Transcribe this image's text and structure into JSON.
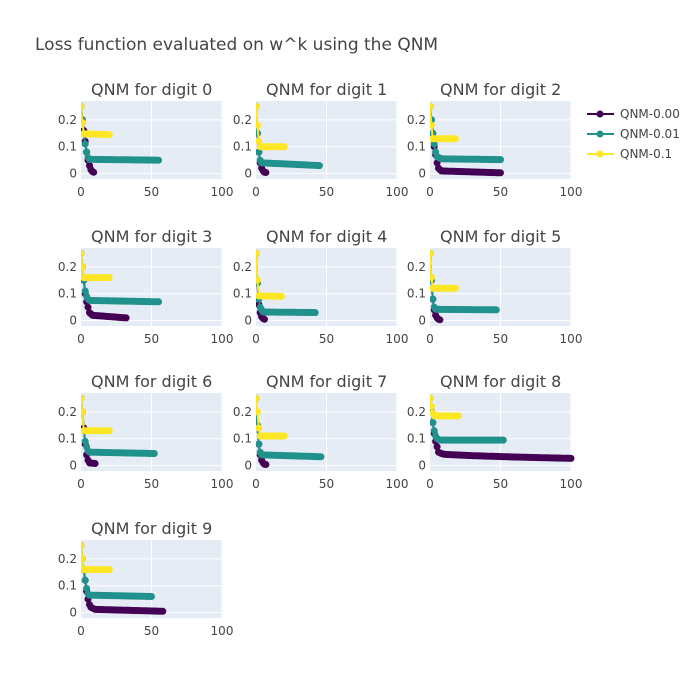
{
  "title": "Loss function evaluated on w^k using the QNM",
  "colors": {
    "plot_bg": "#e5ecf6",
    "grid": "#ffffff",
    "text": "#444444"
  },
  "legend": [
    {
      "name": "QNM-0.00",
      "color": "#440154"
    },
    {
      "name": "QNM-0.01",
      "color": "#21918c"
    },
    {
      "name": "QNM-0.1",
      "color": "#fde725"
    }
  ],
  "chart_data": [
    {
      "type": "line",
      "title": "QNM for digit 0",
      "xlim": [
        0,
        100
      ],
      "ylim": [
        -0.02,
        0.27
      ],
      "xticks": [
        0,
        50,
        100
      ],
      "yticks": [
        0,
        0.1,
        0.2
      ],
      "ytick_labels": [
        "0",
        "0.1",
        "0.2"
      ],
      "series": [
        {
          "name": "QNM-0.00",
          "color": "#440154",
          "x": [
            0,
            1,
            2,
            3,
            4,
            5,
            6,
            7,
            8,
            9
          ],
          "y": [
            0.25,
            0.2,
            0.16,
            0.12,
            0.08,
            0.05,
            0.03,
            0.015,
            0.008,
            0.005
          ]
        },
        {
          "name": "QNM-0.01",
          "color": "#21918c",
          "x": [
            0,
            1,
            2,
            3,
            4,
            5,
            6,
            55
          ],
          "y": [
            0.25,
            0.2,
            0.15,
            0.11,
            0.08,
            0.06,
            0.053,
            0.05
          ]
        },
        {
          "name": "QNM-0.1",
          "color": "#fde725",
          "x": [
            0,
            1,
            2,
            20
          ],
          "y": [
            0.25,
            0.19,
            0.148,
            0.145
          ]
        }
      ]
    },
    {
      "type": "line",
      "title": "QNM for digit 1",
      "xlim": [
        0,
        100
      ],
      "ylim": [
        -0.02,
        0.27
      ],
      "xticks": [
        0,
        50,
        100
      ],
      "yticks": [
        0,
        0.1,
        0.2
      ],
      "ytick_labels": [
        "0",
        "0.1",
        "0.2"
      ],
      "series": [
        {
          "name": "QNM-0.00",
          "color": "#440154",
          "x": [
            0,
            1,
            2,
            3,
            4,
            5,
            6,
            7
          ],
          "y": [
            0.25,
            0.15,
            0.08,
            0.04,
            0.02,
            0.01,
            0.005,
            0.004
          ]
        },
        {
          "name": "QNM-0.01",
          "color": "#21918c",
          "x": [
            0,
            1,
            2,
            3,
            4,
            45
          ],
          "y": [
            0.25,
            0.15,
            0.08,
            0.05,
            0.04,
            0.03
          ]
        },
        {
          "name": "QNM-0.1",
          "color": "#fde725",
          "x": [
            0,
            1,
            2,
            3,
            20
          ],
          "y": [
            0.25,
            0.18,
            0.12,
            0.1,
            0.1
          ]
        }
      ]
    },
    {
      "type": "line",
      "title": "QNM for digit 2",
      "xlim": [
        0,
        100
      ],
      "ylim": [
        -0.02,
        0.27
      ],
      "xticks": [
        0,
        50,
        100
      ],
      "yticks": [
        0,
        0.1,
        0.2
      ],
      "ytick_labels": [
        "0",
        "0.1",
        "0.2"
      ],
      "series": [
        {
          "name": "QNM-0.00",
          "color": "#440154",
          "x": [
            0,
            1,
            2,
            3,
            4,
            5,
            6,
            8,
            50
          ],
          "y": [
            0.25,
            0.2,
            0.15,
            0.1,
            0.07,
            0.04,
            0.02,
            0.01,
            0.003
          ]
        },
        {
          "name": "QNM-0.01",
          "color": "#21918c",
          "x": [
            0,
            1,
            2,
            3,
            4,
            5,
            8,
            50
          ],
          "y": [
            0.25,
            0.2,
            0.15,
            0.11,
            0.08,
            0.063,
            0.055,
            0.052
          ]
        },
        {
          "name": "QNM-0.1",
          "color": "#fde725",
          "x": [
            0,
            1,
            2,
            18
          ],
          "y": [
            0.25,
            0.18,
            0.13,
            0.13
          ]
        }
      ]
    },
    {
      "type": "line",
      "title": "QNM for digit 3",
      "xlim": [
        0,
        100
      ],
      "ylim": [
        -0.02,
        0.27
      ],
      "xticks": [
        0,
        50,
        100
      ],
      "yticks": [
        0,
        0.1,
        0.2
      ],
      "ytick_labels": [
        "0",
        "0.1",
        "0.2"
      ],
      "series": [
        {
          "name": "QNM-0.00",
          "color": "#440154",
          "x": [
            0,
            1,
            2,
            3,
            4,
            5,
            6,
            8,
            32
          ],
          "y": [
            0.25,
            0.2,
            0.15,
            0.1,
            0.07,
            0.05,
            0.03,
            0.02,
            0.01
          ]
        },
        {
          "name": "QNM-0.01",
          "color": "#21918c",
          "x": [
            0,
            1,
            2,
            3,
            4,
            5,
            6,
            55
          ],
          "y": [
            0.25,
            0.2,
            0.15,
            0.11,
            0.09,
            0.08,
            0.075,
            0.07
          ]
        },
        {
          "name": "QNM-0.1",
          "color": "#fde725",
          "x": [
            0,
            1,
            2,
            20
          ],
          "y": [
            0.25,
            0.2,
            0.16,
            0.16
          ]
        }
      ]
    },
    {
      "type": "line",
      "title": "QNM for digit 4",
      "xlim": [
        0,
        100
      ],
      "ylim": [
        -0.02,
        0.27
      ],
      "xticks": [
        0,
        50,
        100
      ],
      "yticks": [
        0,
        0.1,
        0.2
      ],
      "ytick_labels": [
        "0",
        "0.1",
        "0.2"
      ],
      "series": [
        {
          "name": "QNM-0.00",
          "color": "#440154",
          "x": [
            0,
            1,
            2,
            3,
            4,
            5,
            6
          ],
          "y": [
            0.25,
            0.14,
            0.06,
            0.03,
            0.015,
            0.008,
            0.005
          ]
        },
        {
          "name": "QNM-0.01",
          "color": "#21918c",
          "x": [
            0,
            1,
            2,
            3,
            4,
            5,
            42
          ],
          "y": [
            0.25,
            0.14,
            0.08,
            0.05,
            0.04,
            0.032,
            0.03
          ]
        },
        {
          "name": "QNM-0.1",
          "color": "#fde725",
          "x": [
            0,
            1,
            2,
            18
          ],
          "y": [
            0.25,
            0.15,
            0.092,
            0.09
          ]
        }
      ]
    },
    {
      "type": "line",
      "title": "QNM for digit 5",
      "xlim": [
        0,
        100
      ],
      "ylim": [
        -0.02,
        0.27
      ],
      "xticks": [
        0,
        50,
        100
      ],
      "yticks": [
        0,
        0.1,
        0.2
      ],
      "ytick_labels": [
        "0",
        "0.1",
        "0.2"
      ],
      "series": [
        {
          "name": "QNM-0.00",
          "color": "#440154",
          "x": [
            0,
            1,
            2,
            3,
            4,
            5,
            6,
            7
          ],
          "y": [
            0.25,
            0.15,
            0.08,
            0.04,
            0.02,
            0.01,
            0.005,
            0.003
          ]
        },
        {
          "name": "QNM-0.01",
          "color": "#21918c",
          "x": [
            0,
            1,
            2,
            3,
            4,
            47
          ],
          "y": [
            0.25,
            0.15,
            0.08,
            0.05,
            0.042,
            0.04
          ]
        },
        {
          "name": "QNM-0.1",
          "color": "#fde725",
          "x": [
            0,
            1,
            2,
            18
          ],
          "y": [
            0.25,
            0.16,
            0.12,
            0.12
          ]
        }
      ]
    },
    {
      "type": "line",
      "title": "QNM for digit 6",
      "xlim": [
        0,
        100
      ],
      "ylim": [
        -0.02,
        0.27
      ],
      "xticks": [
        0,
        50,
        100
      ],
      "yticks": [
        0,
        0.1,
        0.2
      ],
      "ytick_labels": [
        "0",
        "0.1",
        "0.2"
      ],
      "series": [
        {
          "name": "QNM-0.00",
          "color": "#440154",
          "x": [
            0,
            1,
            2,
            3,
            4,
            5,
            6,
            10
          ],
          "y": [
            0.25,
            0.2,
            0.14,
            0.08,
            0.04,
            0.02,
            0.01,
            0.008
          ]
        },
        {
          "name": "QNM-0.01",
          "color": "#21918c",
          "x": [
            0,
            1,
            2,
            3,
            4,
            5,
            6,
            52
          ],
          "y": [
            0.25,
            0.2,
            0.13,
            0.09,
            0.07,
            0.055,
            0.05,
            0.045
          ]
        },
        {
          "name": "QNM-0.1",
          "color": "#fde725",
          "x": [
            0,
            1,
            2,
            20
          ],
          "y": [
            0.25,
            0.2,
            0.13,
            0.13
          ]
        }
      ]
    },
    {
      "type": "line",
      "title": "QNM for digit 7",
      "xlim": [
        0,
        100
      ],
      "ylim": [
        -0.02,
        0.27
      ],
      "xticks": [
        0,
        50,
        100
      ],
      "yticks": [
        0,
        0.1,
        0.2
      ],
      "ytick_labels": [
        "0",
        "0.1",
        "0.2"
      ],
      "series": [
        {
          "name": "QNM-0.00",
          "color": "#440154",
          "x": [
            0,
            1,
            2,
            3,
            4,
            5,
            6,
            7
          ],
          "y": [
            0.25,
            0.15,
            0.08,
            0.04,
            0.02,
            0.01,
            0.005,
            0.004
          ]
        },
        {
          "name": "QNM-0.01",
          "color": "#21918c",
          "x": [
            0,
            1,
            2,
            3,
            4,
            46
          ],
          "y": [
            0.25,
            0.15,
            0.08,
            0.05,
            0.04,
            0.033
          ]
        },
        {
          "name": "QNM-0.1",
          "color": "#fde725",
          "x": [
            0,
            1,
            2,
            3,
            20
          ],
          "y": [
            0.25,
            0.2,
            0.14,
            0.11,
            0.11
          ]
        }
      ]
    },
    {
      "type": "line",
      "title": "QNM for digit 8",
      "xlim": [
        0,
        100
      ],
      "ylim": [
        -0.02,
        0.27
      ],
      "xticks": [
        0,
        50,
        100
      ],
      "yticks": [
        0,
        0.1,
        0.2
      ],
      "ytick_labels": [
        "0",
        "0.1",
        "0.2"
      ],
      "series": [
        {
          "name": "QNM-0.00",
          "color": "#440154",
          "x": [
            0,
            1,
            2,
            3,
            4,
            5,
            6,
            8,
            10,
            30,
            60,
            100
          ],
          "y": [
            0.25,
            0.2,
            0.16,
            0.12,
            0.09,
            0.07,
            0.05,
            0.045,
            0.042,
            0.037,
            0.032,
            0.027
          ]
        },
        {
          "name": "QNM-0.01",
          "color": "#21918c",
          "x": [
            0,
            1,
            2,
            3,
            4,
            5,
            7,
            52
          ],
          "y": [
            0.25,
            0.2,
            0.16,
            0.13,
            0.11,
            0.1,
            0.095,
            0.095
          ]
        },
        {
          "name": "QNM-0.1",
          "color": "#fde725",
          "x": [
            0,
            1,
            2,
            3,
            20
          ],
          "y": [
            0.25,
            0.22,
            0.195,
            0.185,
            0.185
          ]
        }
      ]
    },
    {
      "type": "line",
      "title": "QNM for digit 9",
      "xlim": [
        0,
        100
      ],
      "ylim": [
        -0.02,
        0.27
      ],
      "xticks": [
        0,
        50,
        100
      ],
      "yticks": [
        0,
        0.1,
        0.2
      ],
      "ytick_labels": [
        "0",
        "0.1",
        "0.2"
      ],
      "series": [
        {
          "name": "QNM-0.00",
          "color": "#440154",
          "x": [
            0,
            1,
            2,
            3,
            4,
            5,
            6,
            7,
            10,
            58
          ],
          "y": [
            0.25,
            0.2,
            0.16,
            0.12,
            0.08,
            0.05,
            0.03,
            0.02,
            0.012,
            0.005
          ]
        },
        {
          "name": "QNM-0.01",
          "color": "#21918c",
          "x": [
            0,
            1,
            2,
            3,
            4,
            5,
            6,
            50
          ],
          "y": [
            0.25,
            0.2,
            0.16,
            0.12,
            0.09,
            0.07,
            0.065,
            0.06
          ]
        },
        {
          "name": "QNM-0.1",
          "color": "#fde725",
          "x": [
            0,
            1,
            2,
            20
          ],
          "y": [
            0.25,
            0.2,
            0.16,
            0.16
          ]
        }
      ]
    }
  ]
}
